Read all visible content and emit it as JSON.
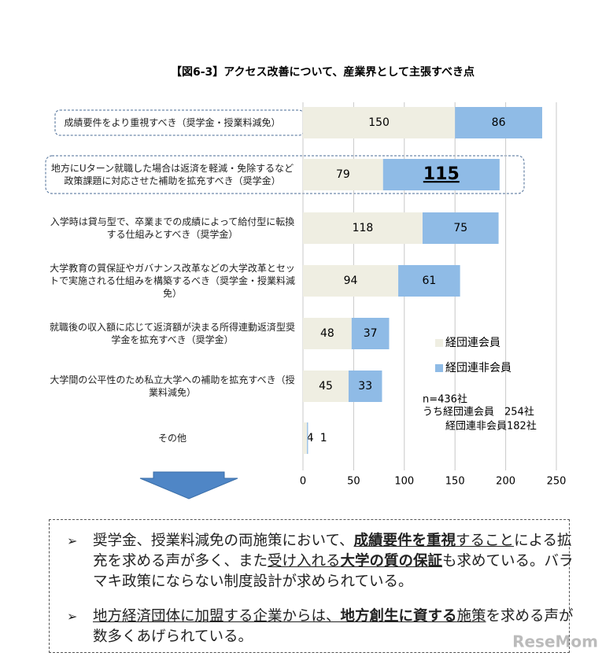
{
  "chart_data": {
    "type": "stacked-barh",
    "title": "【図6-3】アクセス改善について、産業界として主張すべき点",
    "categories": [
      "成績要件をより重視すべき（奨学金・授業料減免）",
      "地方にUターン就職した場合は返済を軽減・免除するなど政策課題に対応させた補助を拡充すべき（奨学金）",
      "入学時は貸与型で、卒業までの成績によって給付型に転換する仕組みとすべき（奨学金）",
      "大学教育の質保証やガバナンス改革などの大学改革とセットで実施される仕組みを構築するべき（奨学金・授業料減免）",
      "就職後の収入額に応じて返済額が決まる所得連動返済型奨学金を拡充すべき（奨学金）",
      "大学間の公平性のため私立大学への補助を拡充すべき（授業料減免）",
      "その他"
    ],
    "series": [
      {
        "name": "経団連会員",
        "color": "#efeee2",
        "values": [
          150,
          79,
          118,
          94,
          48,
          45,
          4
        ]
      },
      {
        "name": "経団連非会員",
        "color": "#8fbbe6",
        "values": [
          86,
          115,
          75,
          61,
          37,
          33,
          1
        ]
      }
    ],
    "xlim": [
      0,
      250
    ],
    "xticks": [
      0,
      50,
      100,
      150,
      200,
      250
    ],
    "grid": true,
    "annotations": [
      "n=436社",
      "うち経団連会員　254社",
      "経団連非会員182社"
    ]
  },
  "summary": {
    "bullets": [
      [
        {
          "text": "奨学金、授業料減免の両施策において、"
        },
        {
          "text": "成績要件を重視",
          "bold": true,
          "underline": true
        },
        {
          "text": "すること",
          "underline": true
        },
        {
          "text": "による拡充を求める声が多く、また"
        },
        {
          "text": "受け入れる",
          "underline": true
        },
        {
          "text": "大学の質の保証",
          "bold": true,
          "underline": true
        },
        {
          "text": "も求めている。バラマキ政策にならない制度設計が求められている。"
        }
      ],
      [
        {
          "text": "地方経済団体に加盟する企業からは、",
          "underline": true
        },
        {
          "text": "地方創生に資する",
          "bold": true,
          "underline": true
        },
        {
          "text": "施策",
          "underline": true
        },
        {
          "text": "を求める声が数多くあげられている。"
        }
      ]
    ]
  },
  "watermark": "ReseMom"
}
